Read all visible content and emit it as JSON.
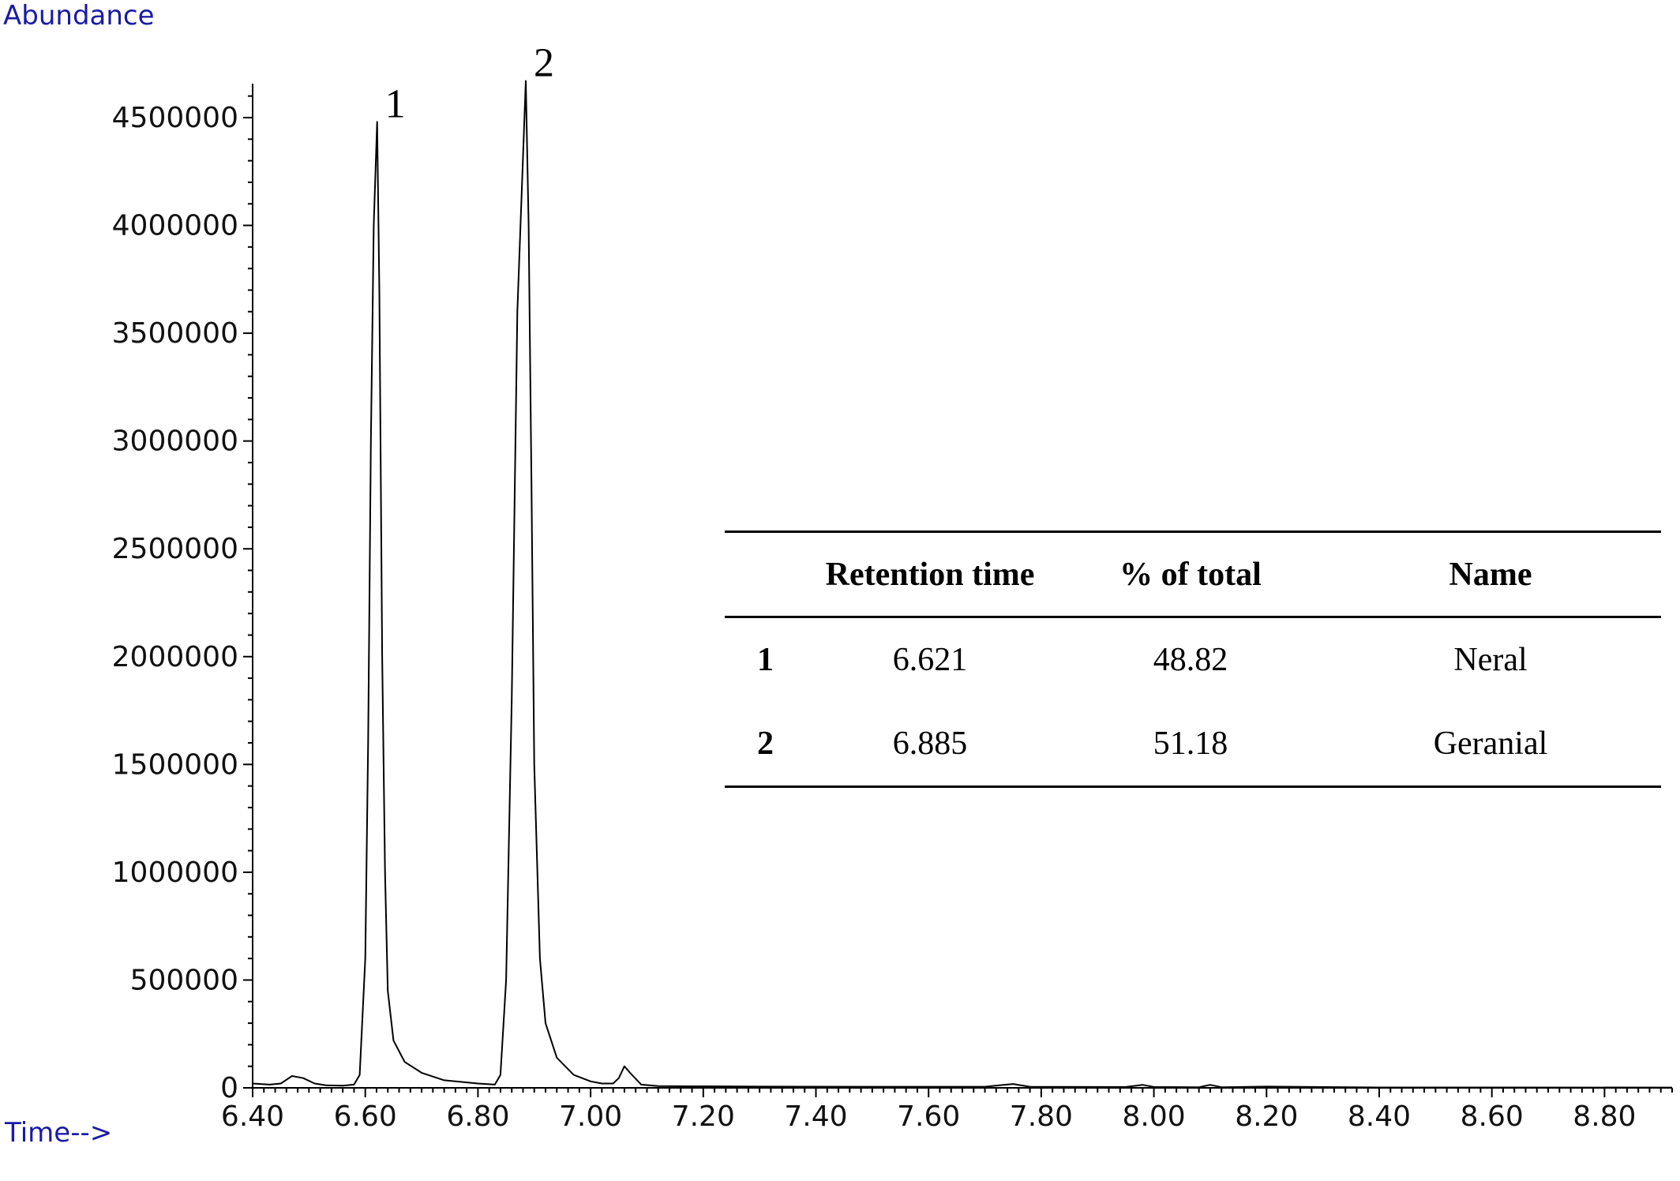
{
  "chart_data": {
    "type": "line",
    "xlabel": "Time-->",
    "ylabel": "Abundance",
    "xlim": [
      6.4,
      8.92
    ],
    "ylim": [
      0,
      4650000
    ],
    "x_ticks": [
      "6.40",
      "6.60",
      "6.80",
      "7.00",
      "7.20",
      "7.40",
      "7.60",
      "7.80",
      "8.00",
      "8.20",
      "8.40",
      "8.60",
      "8.80"
    ],
    "y_ticks": [
      "0",
      "500000",
      "1000000",
      "1500000",
      "2000000",
      "2500000",
      "3000000",
      "3500000",
      "4000000",
      "4500000"
    ],
    "grid": false,
    "series": [
      {
        "points": [
          [
            6.4,
            20000
          ],
          [
            6.43,
            15000
          ],
          [
            6.45,
            20000
          ],
          [
            6.47,
            55000
          ],
          [
            6.49,
            45000
          ],
          [
            6.51,
            20000
          ],
          [
            6.53,
            12000
          ],
          [
            6.56,
            10000
          ],
          [
            6.58,
            15000
          ],
          [
            6.59,
            60000
          ],
          [
            6.6,
            600000
          ],
          [
            6.605,
            1600000
          ],
          [
            6.61,
            3000000
          ],
          [
            6.615,
            4000000
          ],
          [
            6.621,
            4480000
          ],
          [
            6.625,
            3700000
          ],
          [
            6.63,
            2000000
          ],
          [
            6.635,
            1000000
          ],
          [
            6.64,
            450000
          ],
          [
            6.65,
            220000
          ],
          [
            6.67,
            120000
          ],
          [
            6.7,
            70000
          ],
          [
            6.74,
            35000
          ],
          [
            6.8,
            20000
          ],
          [
            6.83,
            15000
          ],
          [
            6.84,
            60000
          ],
          [
            6.85,
            500000
          ],
          [
            6.86,
            1800000
          ],
          [
            6.87,
            3600000
          ],
          [
            6.885,
            4670000
          ],
          [
            6.89,
            4000000
          ],
          [
            6.895,
            2800000
          ],
          [
            6.9,
            1500000
          ],
          [
            6.91,
            600000
          ],
          [
            6.92,
            300000
          ],
          [
            6.94,
            140000
          ],
          [
            6.97,
            60000
          ],
          [
            7.0,
            30000
          ],
          [
            7.02,
            20000
          ],
          [
            7.04,
            20000
          ],
          [
            7.05,
            45000
          ],
          [
            7.06,
            100000
          ],
          [
            7.07,
            70000
          ],
          [
            7.09,
            15000
          ],
          [
            7.12,
            8000
          ],
          [
            7.3,
            6000
          ],
          [
            7.5,
            5000
          ],
          [
            7.7,
            5000
          ],
          [
            7.75,
            18000
          ],
          [
            7.78,
            5000
          ],
          [
            7.95,
            4000
          ],
          [
            7.98,
            14000
          ],
          [
            8.0,
            4000
          ],
          [
            8.08,
            3000
          ],
          [
            8.1,
            14000
          ],
          [
            8.12,
            3000
          ],
          [
            8.2,
            6000
          ],
          [
            8.4,
            2000
          ],
          [
            8.6,
            2000
          ],
          [
            8.92,
            1500
          ]
        ]
      }
    ],
    "peak_labels": [
      {
        "text": "1",
        "x": 6.621,
        "y": 4480000
      },
      {
        "text": "2",
        "x": 6.885,
        "y": 4670000
      }
    ],
    "table": {
      "headers": [
        "",
        "Retention time",
        "% of total",
        "Name"
      ],
      "rows": [
        [
          "1",
          "6.621",
          "48.82",
          "Neral"
        ],
        [
          "2",
          "6.885",
          "51.18",
          "Geranial"
        ]
      ]
    },
    "colors": {
      "line": "#000000",
      "axis_titles": "#1a1aa6"
    }
  }
}
